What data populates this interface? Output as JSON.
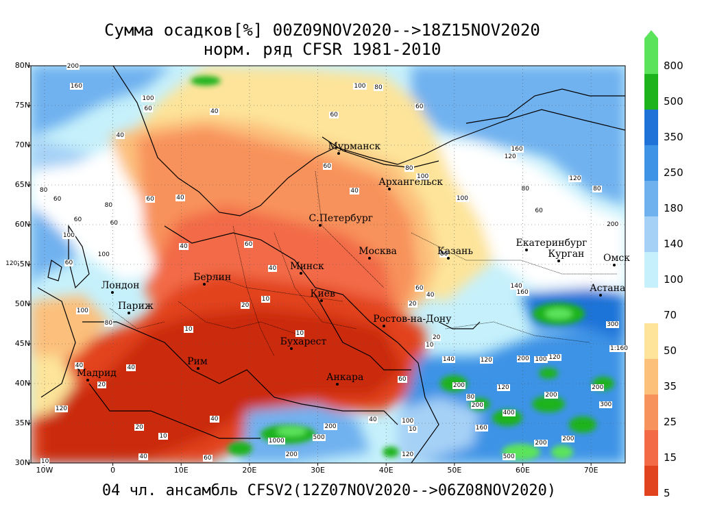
{
  "title": {
    "line1": "Сумма осадков[%] 00Z09NOV2020-->18Z15NOV2020",
    "line2": "норм. ряд CFSR 1981-2010"
  },
  "footer": "04 чл. ансамбль CFSV2(12Z07NOV2020-->06Z08NOV2020)",
  "axes": {
    "lat_labels": [
      "80N",
      "75N",
      "70N",
      "65N",
      "60N",
      "55N",
      "50N",
      "45N",
      "40N",
      "35N",
      "30N"
    ],
    "lon_labels": [
      "10W",
      "0",
      "10E",
      "20E",
      "30E",
      "40E",
      "50E",
      "60E",
      "70E"
    ]
  },
  "cities": [
    {
      "name": "Мурманск",
      "lon": 33.1,
      "lat": 68.97
    },
    {
      "name": "Архангельск",
      "lon": 40.5,
      "lat": 64.5
    },
    {
      "name": "С.Петербург",
      "lon": 30.3,
      "lat": 59.9
    },
    {
      "name": "Москва",
      "lon": 37.6,
      "lat": 55.75
    },
    {
      "name": "Казань",
      "lon": 49.1,
      "lat": 55.8
    },
    {
      "name": "Екатеринбург",
      "lon": 60.6,
      "lat": 56.8
    },
    {
      "name": "Курган",
      "lon": 65.3,
      "lat": 55.45
    },
    {
      "name": "Омск",
      "lon": 73.4,
      "lat": 54.95
    },
    {
      "name": "Астана",
      "lon": 71.4,
      "lat": 51.15
    },
    {
      "name": "Минск",
      "lon": 27.55,
      "lat": 53.9
    },
    {
      "name": "Берлин",
      "lon": 13.4,
      "lat": 52.5
    },
    {
      "name": "Лондон",
      "lon": -0.1,
      "lat": 51.5
    },
    {
      "name": "Париж",
      "lon": 2.35,
      "lat": 48.85
    },
    {
      "name": "Киев",
      "lon": 30.5,
      "lat": 50.45
    },
    {
      "name": "Ростов-на-Дону",
      "lon": 39.7,
      "lat": 47.2
    },
    {
      "name": "Бухарест",
      "lon": 26.1,
      "lat": 44.4
    },
    {
      "name": "Рим",
      "lon": 12.5,
      "lat": 41.9
    },
    {
      "name": "Мадрид",
      "lon": -3.7,
      "lat": 40.4
    },
    {
      "name": "Анкара",
      "lon": 32.85,
      "lat": 39.95
    }
  ],
  "contour_labels": [
    {
      "text": "200",
      "lon": -6,
      "lat": 79.9
    },
    {
      "text": "160",
      "lon": -5.5,
      "lat": 77.4
    },
    {
      "text": "100",
      "lon": 5,
      "lat": 75.9
    },
    {
      "text": "60",
      "lon": 5.3,
      "lat": 74.6
    },
    {
      "text": "40",
      "lon": 15,
      "lat": 74.2
    },
    {
      "text": "100",
      "lon": 36,
      "lat": 77.4
    },
    {
      "text": "80",
      "lon": 39,
      "lat": 77.2
    },
    {
      "text": "60",
      "lon": 32.5,
      "lat": 73.8
    },
    {
      "text": "60",
      "lon": 45,
      "lat": 74.8
    },
    {
      "text": "40",
      "lon": 1.2,
      "lat": 71.2
    },
    {
      "text": "60",
      "lon": 31.5,
      "lat": 67.3
    },
    {
      "text": "40",
      "lon": 35.5,
      "lat": 64.2
    },
    {
      "text": "80",
      "lon": 43.5,
      "lat": 67.1
    },
    {
      "text": "100",
      "lon": 45.2,
      "lat": 66.0
    },
    {
      "text": "100",
      "lon": 51,
      "lat": 63.3
    },
    {
      "text": "80",
      "lon": -10,
      "lat": 64.3
    },
    {
      "text": "60",
      "lon": -8,
      "lat": 63.2
    },
    {
      "text": "60",
      "lon": 5.6,
      "lat": 63.2
    },
    {
      "text": "80",
      "lon": -0.5,
      "lat": 62.4
    },
    {
      "text": "40",
      "lon": 10,
      "lat": 63.4
    },
    {
      "text": "60",
      "lon": -5,
      "lat": 60.6
    },
    {
      "text": "100",
      "lon": -6.6,
      "lat": 58.6
    },
    {
      "text": "60",
      "lon": 0.3,
      "lat": 60.2
    },
    {
      "text": "100",
      "lon": -1.5,
      "lat": 56.2
    },
    {
      "text": "60",
      "lon": -6.3,
      "lat": 55.2
    },
    {
      "text": "120",
      "lon": -15,
      "lat": 55.1
    },
    {
      "text": "40",
      "lon": 10.5,
      "lat": 57.2
    },
    {
      "text": "60",
      "lon": 20,
      "lat": 57.5
    },
    {
      "text": "40",
      "lon": 23.5,
      "lat": 54.5
    },
    {
      "text": "10",
      "lon": 22.5,
      "lat": 50.6
    },
    {
      "text": "20",
      "lon": 19.5,
      "lat": 49.8
    },
    {
      "text": "10",
      "lon": 27.5,
      "lat": 46.3
    },
    {
      "text": "20",
      "lon": 44,
      "lat": 50.0
    },
    {
      "text": "60",
      "lon": 45,
      "lat": 52.0
    },
    {
      "text": "40",
      "lon": 46.6,
      "lat": 51.1
    },
    {
      "text": "80",
      "lon": 48.6,
      "lat": 56.3
    },
    {
      "text": "160",
      "lon": 59,
      "lat": 69.5
    },
    {
      "text": "120",
      "lon": 58,
      "lat": 68.5
    },
    {
      "text": "80",
      "lon": 60.5,
      "lat": 64.5
    },
    {
      "text": "60",
      "lon": 62.5,
      "lat": 61.7
    },
    {
      "text": "120",
      "lon": 67.5,
      "lat": 65.8
    },
    {
      "text": "80",
      "lon": 71,
      "lat": 64.5
    },
    {
      "text": "200",
      "lon": 73,
      "lat": 60.0
    },
    {
      "text": "140",
      "lon": 58.9,
      "lat": 52.2
    },
    {
      "text": "160",
      "lon": 59.8,
      "lat": 51.5
    },
    {
      "text": "300",
      "lon": 73,
      "lat": 47.4
    },
    {
      "text": "1:160",
      "lon": 73.5,
      "lat": 44.4
    },
    {
      "text": "200",
      "lon": 59.9,
      "lat": 43.1
    },
    {
      "text": "100",
      "lon": 62.5,
      "lat": 43.0
    },
    {
      "text": "120",
      "lon": 64.5,
      "lat": 43.3
    },
    {
      "text": "120",
      "lon": 54.5,
      "lat": 42.9
    },
    {
      "text": "120",
      "lon": 57,
      "lat": 39.5
    },
    {
      "text": "200",
      "lon": 50.5,
      "lat": 39.7
    },
    {
      "text": "80",
      "lon": 52.5,
      "lat": 38.3
    },
    {
      "text": "200",
      "lon": 53.2,
      "lat": 37.2
    },
    {
      "text": "400",
      "lon": 57.8,
      "lat": 36.3
    },
    {
      "text": "200",
      "lon": 64,
      "lat": 38.5
    },
    {
      "text": "160",
      "lon": 53.8,
      "lat": 34.4
    },
    {
      "text": "200",
      "lon": 62.5,
      "lat": 32.5
    },
    {
      "text": "200",
      "lon": 66.5,
      "lat": 33.0
    },
    {
      "text": "500",
      "lon": 57.8,
      "lat": 30.8
    },
    {
      "text": "200",
      "lon": 70.8,
      "lat": 39.5
    },
    {
      "text": "300",
      "lon": 72,
      "lat": 37.3
    },
    {
      "text": "140",
      "lon": 49,
      "lat": 43.0
    },
    {
      "text": "10",
      "lon": 46.5,
      "lat": 44.8
    },
    {
      "text": "20",
      "lon": 47.5,
      "lat": 45.8
    },
    {
      "text": "60",
      "lon": 42.5,
      "lat": 40.5
    },
    {
      "text": "40",
      "lon": 38.2,
      "lat": 35.4
    },
    {
      "text": "100",
      "lon": 43,
      "lat": 35.3
    },
    {
      "text": "10",
      "lon": 44,
      "lat": 34.2
    },
    {
      "text": "200",
      "lon": 31.7,
      "lat": 34.6
    },
    {
      "text": "500",
      "lon": 30,
      "lat": 33.2
    },
    {
      "text": "1000",
      "lon": 23.5,
      "lat": 32.8
    },
    {
      "text": "200",
      "lon": 26,
      "lat": 31.0
    },
    {
      "text": "120",
      "lon": 43,
      "lat": 31.0
    },
    {
      "text": "60",
      "lon": 14,
      "lat": 30.6
    },
    {
      "text": "40",
      "lon": 4.6,
      "lat": 30.8
    },
    {
      "text": "10",
      "lon": 7.5,
      "lat": 33.4
    },
    {
      "text": "20",
      "lon": 4,
      "lat": 34.5
    },
    {
      "text": "40",
      "lon": 15,
      "lat": 35.5
    },
    {
      "text": "20",
      "lon": -1.5,
      "lat": 39.8
    },
    {
      "text": "40",
      "lon": 2.8,
      "lat": 42.0
    },
    {
      "text": "40",
      "lon": -4.8,
      "lat": 42.2
    },
    {
      "text": "120",
      "lon": -7.7,
      "lat": 36.8
    },
    {
      "text": "10",
      "lon": -9.8,
      "lat": 30.2
    },
    {
      "text": "10",
      "lon": 11.2,
      "lat": 46.8
    },
    {
      "text": "80",
      "lon": -0.5,
      "lat": 47.6
    },
    {
      "text": "100",
      "lon": -4.6,
      "lat": 49.1
    }
  ],
  "legend": {
    "labels": [
      "800",
      "500",
      "350",
      "250",
      "180",
      "140",
      "100",
      "70",
      "50",
      "35",
      "25",
      "15",
      "5"
    ],
    "colors": [
      "#5be35b",
      "#1db31d",
      "#1f73d8",
      "#3e93e6",
      "#6fb1ef",
      "#a6d1f6",
      "#c6f0fb",
      "#ffffff",
      "#fde49a",
      "#fcc07b",
      "#f8925c",
      "#f26a46",
      "#e2431f",
      "#cb2a09"
    ]
  }
}
